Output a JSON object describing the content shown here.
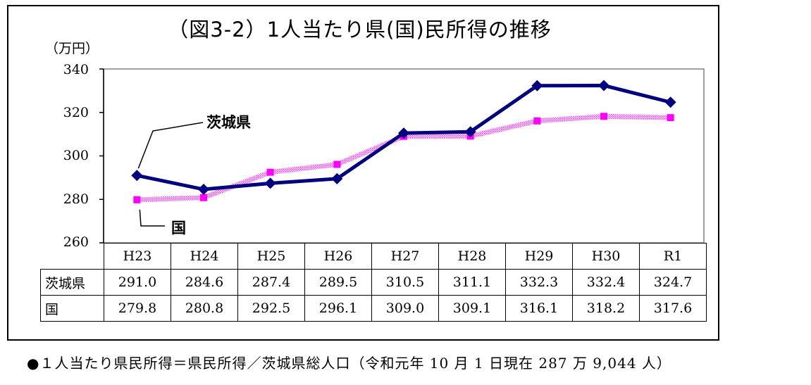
{
  "chart_data": {
    "type": "line",
    "title": "（図3-2）1人当たり県(国)民所得の推移",
    "ylabel": "（万円）",
    "ylim": [
      260,
      340
    ],
    "yticks": [
      "340",
      "320",
      "300",
      "280",
      "260"
    ],
    "categories": [
      "H23",
      "H24",
      "H25",
      "H26",
      "H27",
      "H28",
      "H29",
      "H30",
      "R1"
    ],
    "grid": false,
    "series": [
      {
        "name": "茨城県",
        "color": "#000080",
        "marker": "diamond",
        "values": [
          291.0,
          284.6,
          287.4,
          289.5,
          310.5,
          311.1,
          332.3,
          332.4,
          324.7
        ],
        "labels": [
          "291.0",
          "284.6",
          "287.4",
          "289.5",
          "310.5",
          "311.1",
          "332.3",
          "332.4",
          "324.7"
        ]
      },
      {
        "name": "国",
        "color": "#ff00ff",
        "marker": "square",
        "values": [
          279.8,
          280.8,
          292.5,
          296.1,
          309.0,
          309.1,
          316.1,
          318.2,
          317.6
        ],
        "labels": [
          "279.8",
          "280.8",
          "292.5",
          "296.1",
          "309.0",
          "309.1",
          "316.1",
          "318.2",
          "317.6"
        ]
      }
    ],
    "annotations": [
      "茨城県",
      "国"
    ]
  },
  "footnote": "●１人当たり県民所得＝県民所得／茨城県総人口（令和元年 10 月 1 日現在 287 万 9,044 人）"
}
